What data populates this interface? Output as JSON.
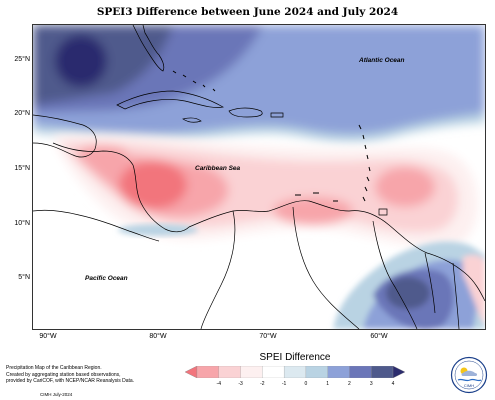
{
  "title": "SPEI3 Difference between June 2024 and July 2024",
  "labels": {
    "atlantic": "Atlantic Ocean",
    "caribbean": "Caribbean Sea",
    "pacific": "Pacific Ocean"
  },
  "lat_ticks": [
    "25°N",
    "20°N",
    "15°N",
    "10°N",
    "5°N"
  ],
  "lon_ticks": [
    "90°W",
    "80°W",
    "70°W",
    "60°W"
  ],
  "legend": {
    "title": "SPEI Difference",
    "ticks": [
      "-4",
      "-3",
      "-2",
      "-1",
      "0",
      "1",
      "2",
      "3",
      "4"
    ],
    "colors": [
      "#f2747c",
      "#f7a5aa",
      "#fad2d4",
      "#fdf0f0",
      "#ffffff",
      "#dce9f0",
      "#b9d3e3",
      "#8da1d8",
      "#6b76b8",
      "#4f5a8c",
      "#2c2c6e"
    ]
  },
  "credit": {
    "lines": [
      "Precipitation Map of the Caribbean Region.",
      "Created by aggregating station based observations,",
      "provided by CariCOF, with NCEP/NCAR Reanalysis Data."
    ],
    "date": "CIMH July-2024"
  },
  "logo": {
    "text": "CIMH"
  }
}
